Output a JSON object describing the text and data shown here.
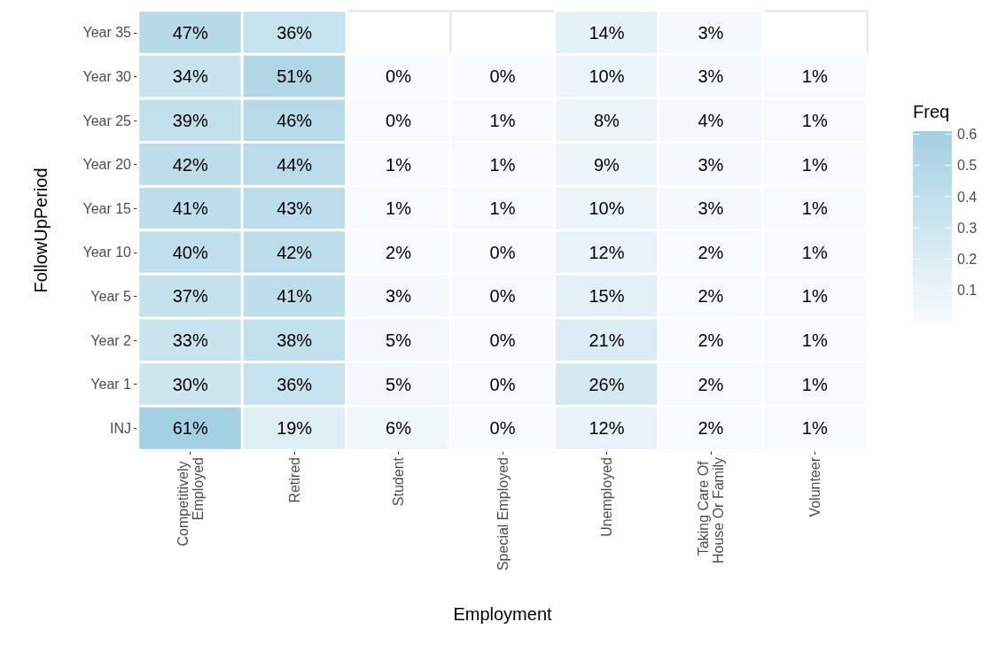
{
  "chart_data": {
    "type": "heatmap",
    "xlabel": "Employment",
    "ylabel": "FollowUpPeriod",
    "legend_title": "Freq",
    "categories": [
      "Competitively Employed",
      "Retired",
      "Student",
      "Special Employed",
      "Unemployed",
      "Taking Care Of House Or Family",
      "Volunteer"
    ],
    "y_categories": [
      "Year 35",
      "Year 30",
      "Year 25",
      "Year 20",
      "Year 15",
      "Year 10",
      "Year 5",
      "Year 2",
      "Year 1",
      "INJ"
    ],
    "cells": [
      [
        0.47,
        0.36,
        null,
        null,
        0.14,
        0.03,
        null
      ],
      [
        0.34,
        0.51,
        0,
        0,
        0.1,
        0.03,
        0.01
      ],
      [
        0.39,
        0.46,
        0,
        0.01,
        0.08,
        0.04,
        0.01
      ],
      [
        0.42,
        0.44,
        0.01,
        0.01,
        0.09,
        0.03,
        0.01
      ],
      [
        0.41,
        0.43,
        0.01,
        0.01,
        0.1,
        0.03,
        0.01
      ],
      [
        0.4,
        0.42,
        0.02,
        0,
        0.12,
        0.02,
        0.01
      ],
      [
        0.37,
        0.41,
        0.03,
        0,
        0.15,
        0.02,
        0.01
      ],
      [
        0.33,
        0.38,
        0.05,
        0,
        0.21,
        0.02,
        0.01
      ],
      [
        0.3,
        0.36,
        0.05,
        0,
        0.26,
        0.02,
        0.01
      ],
      [
        0.61,
        0.19,
        0.06,
        0,
        0.12,
        0.02,
        0.01
      ]
    ],
    "cell_labels": [
      [
        "47%",
        "36%",
        null,
        null,
        "14%",
        "3%",
        null
      ],
      [
        "34%",
        "51%",
        "0%",
        "0%",
        "10%",
        "3%",
        "1%"
      ],
      [
        "39%",
        "46%",
        "0%",
        "1%",
        "8%",
        "4%",
        "1%"
      ],
      [
        "42%",
        "44%",
        "1%",
        "1%",
        "9%",
        "3%",
        "1%"
      ],
      [
        "41%",
        "43%",
        "1%",
        "1%",
        "10%",
        "3%",
        "1%"
      ],
      [
        "40%",
        "42%",
        "2%",
        "0%",
        "12%",
        "2%",
        "1%"
      ],
      [
        "37%",
        "41%",
        "3%",
        "0%",
        "15%",
        "2%",
        "1%"
      ],
      [
        "33%",
        "38%",
        "5%",
        "0%",
        "21%",
        "2%",
        "1%"
      ],
      [
        "30%",
        "36%",
        "5%",
        "0%",
        "26%",
        "2%",
        "1%"
      ],
      [
        "61%",
        "19%",
        "6%",
        "0%",
        "12%",
        "2%",
        "1%"
      ]
    ],
    "clim": [
      0,
      0.61
    ],
    "cticks": [
      0.1,
      0.2,
      0.3,
      0.4,
      0.5,
      0.6
    ],
    "grid": true
  }
}
